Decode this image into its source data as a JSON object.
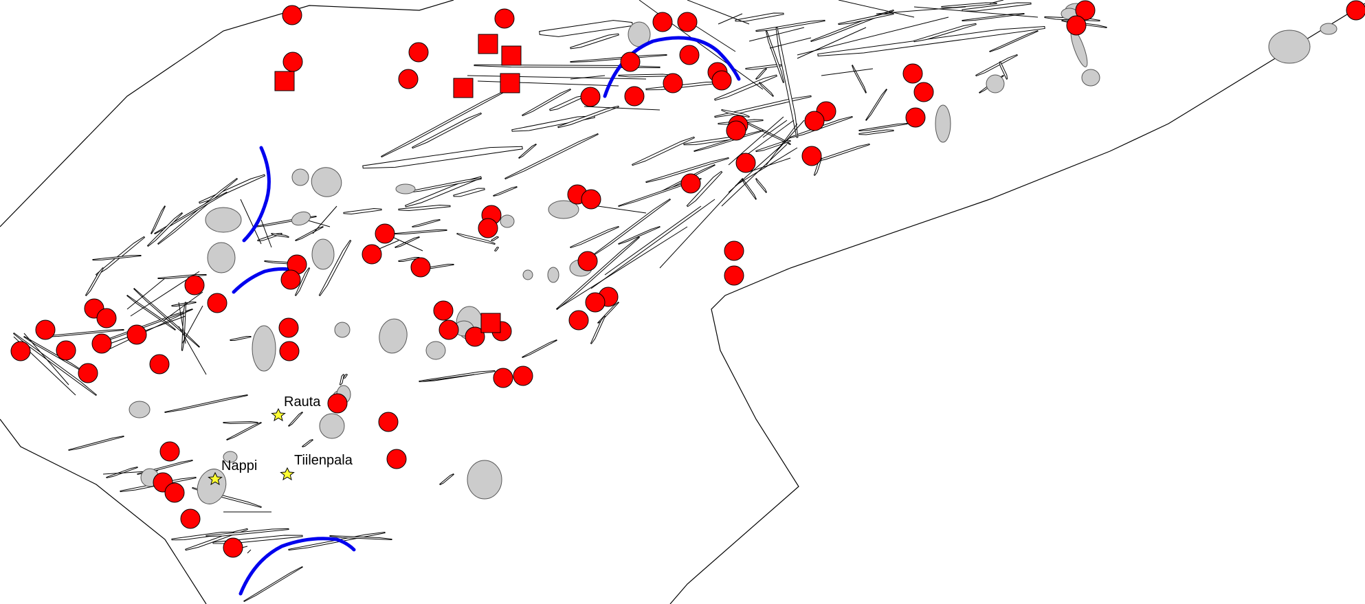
{
  "map": {
    "places": [
      {
        "id": "rauta",
        "label": "Rauta"
      },
      {
        "id": "tiilenpala",
        "label": "Tiilenpala"
      },
      {
        "id": "nappi",
        "label": "Nappi"
      }
    ],
    "symbols": {
      "observation_circle": "red-circle-icon",
      "observation_square": "red-square-icon",
      "place_star": "yellow-star-icon"
    },
    "colors": {
      "background": "#ffffff",
      "observation": "#ff0000",
      "arc": "#0000ee",
      "outcrop": "#cccccc",
      "place_star": "#ffff33"
    }
  }
}
